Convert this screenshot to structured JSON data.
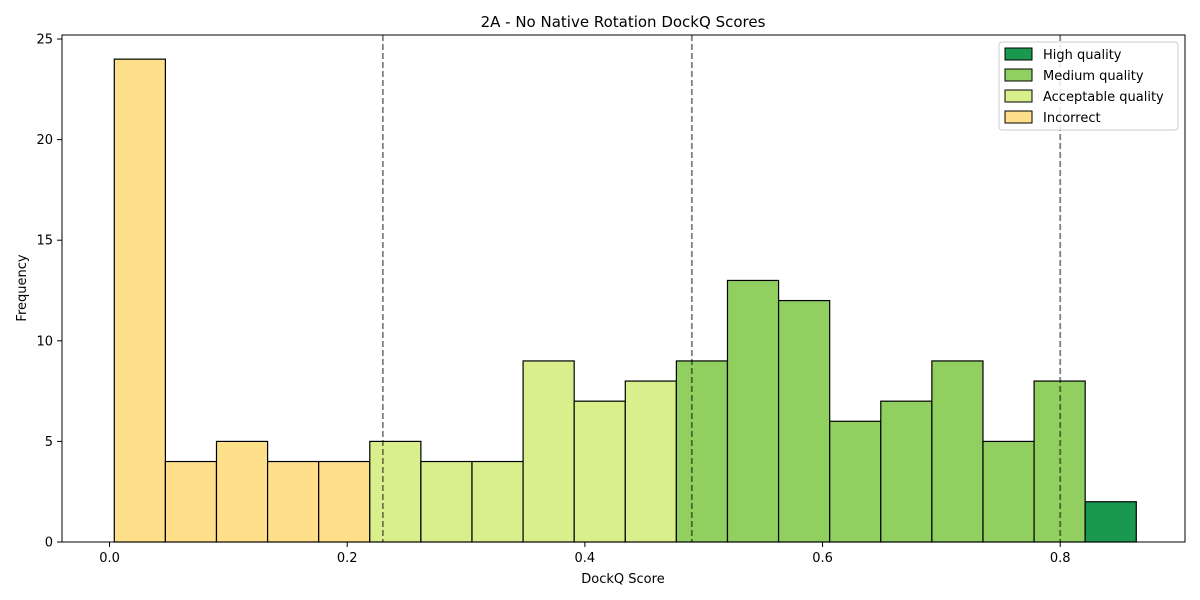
{
  "chart_data": {
    "type": "bar",
    "title": "2A - No Native Rotation DockQ Scores",
    "xlabel": "DockQ Score",
    "ylabel": "Frequency",
    "xlim": [
      -0.04,
      0.905
    ],
    "ylim": [
      0,
      25.2
    ],
    "xticks": [
      0.0,
      0.2,
      0.4,
      0.6,
      0.8
    ],
    "xtick_labels": [
      "0.0",
      "0.2",
      "0.4",
      "0.6",
      "0.8"
    ],
    "yticks": [
      0,
      5,
      10,
      15,
      20,
      25
    ],
    "ytick_labels": [
      "0",
      "5",
      "10",
      "15",
      "20",
      "25"
    ],
    "grid": false,
    "legend_position": "top-right",
    "thresholds": [
      0.23,
      0.49,
      0.8
    ],
    "bin_edges": [
      0.004,
      0.047,
      0.09,
      0.133,
      0.176,
      0.219,
      0.262,
      0.305,
      0.348,
      0.391,
      0.434,
      0.477,
      0.52,
      0.563,
      0.606,
      0.649,
      0.692,
      0.735,
      0.778,
      0.821,
      0.864
    ],
    "values": [
      24,
      4,
      5,
      4,
      4,
      5,
      4,
      4,
      9,
      7,
      8,
      9,
      13,
      12,
      6,
      7,
      9,
      5,
      8,
      2
    ],
    "bar_classes": [
      "Incorrect",
      "Incorrect",
      "Incorrect",
      "Incorrect",
      "Incorrect",
      "Acceptable quality",
      "Acceptable quality",
      "Acceptable quality",
      "Acceptable quality",
      "Acceptable quality",
      "Acceptable quality",
      "Medium quality",
      "Medium quality",
      "Medium quality",
      "Medium quality",
      "Medium quality",
      "Medium quality",
      "Medium quality",
      "Medium quality",
      "High quality"
    ],
    "series": [
      {
        "name": "High quality",
        "color": "#1a9850"
      },
      {
        "name": "Medium quality",
        "color": "#91cf60"
      },
      {
        "name": "Acceptable quality",
        "color": "#d9ef8b"
      },
      {
        "name": "Incorrect",
        "color": "#fee08b"
      }
    ]
  }
}
